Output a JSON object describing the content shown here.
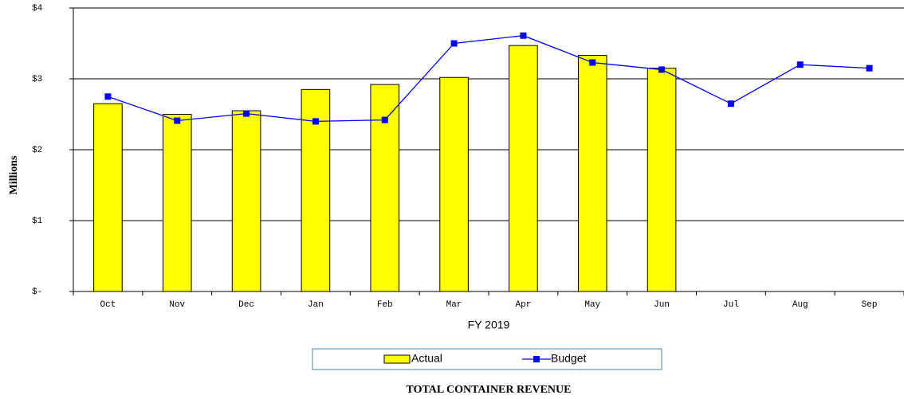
{
  "chart_data": {
    "type": "bar",
    "title": "TOTAL CONTAINER REVENUE",
    "x_label": "FY 2019",
    "y_label": "Millions",
    "categories": [
      "Oct",
      "Nov",
      "Dec",
      "Jan",
      "Feb",
      "Mar",
      "Apr",
      "May",
      "Jun",
      "Jul",
      "Aug",
      "Sep"
    ],
    "series": [
      {
        "name": "Actual",
        "type": "bar",
        "color": "#ffff00",
        "values": [
          2.65,
          2.5,
          2.55,
          2.85,
          2.92,
          3.02,
          3.47,
          3.33,
          3.15,
          null,
          null,
          null
        ]
      },
      {
        "name": "Budget",
        "type": "line",
        "color": "#0000ff",
        "values": [
          2.75,
          2.41,
          2.51,
          2.4,
          2.42,
          3.5,
          3.61,
          3.23,
          3.13,
          2.65,
          3.2,
          3.15
        ]
      }
    ],
    "ylim": [
      0,
      4
    ],
    "yticks": [
      {
        "value": 0,
        "label": "$-"
      },
      {
        "value": 1,
        "label": "$1"
      },
      {
        "value": 2,
        "label": "$2"
      },
      {
        "value": 3,
        "label": "$3"
      },
      {
        "value": 4,
        "label": "$4"
      }
    ],
    "grid": true,
    "legend": "bottom"
  }
}
